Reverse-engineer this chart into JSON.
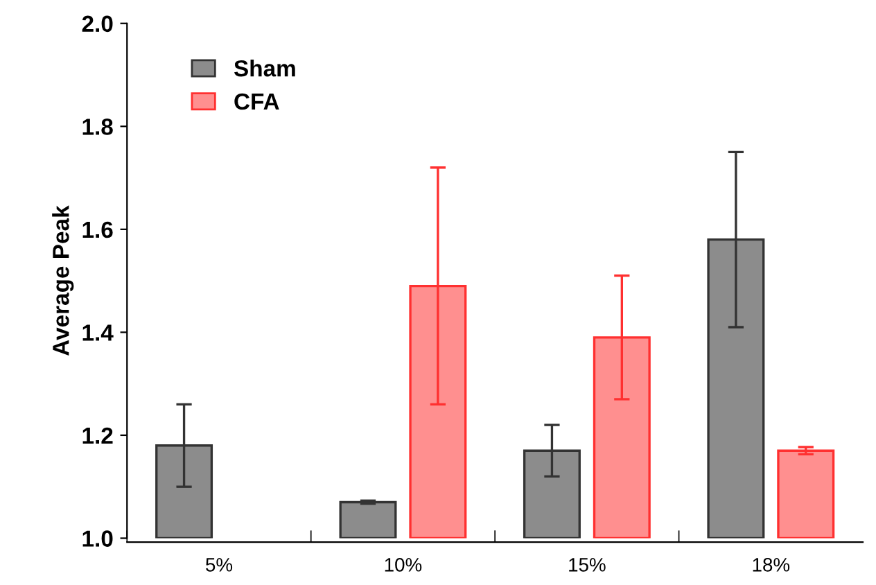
{
  "chart_data": {
    "type": "bar",
    "ylabel": "Average Peak",
    "categories": [
      "5%",
      "10%",
      "15%",
      "18%"
    ],
    "series": [
      {
        "name": "Sham",
        "color": "#8c8c8c",
        "values": [
          1.18,
          1.07,
          1.17,
          1.58
        ],
        "errors": [
          [
            1.1,
            1.26
          ],
          0.003,
          [
            1.12,
            1.22
          ],
          [
            1.41,
            1.75
          ]
        ]
      },
      {
        "name": "CFA",
        "color": "#ff8f8f",
        "values": [
          null,
          1.49,
          1.39,
          1.17
        ],
        "errors": [
          null,
          [
            1.26,
            1.72
          ],
          [
            1.27,
            1.51
          ],
          0.007
        ]
      }
    ],
    "ylim": [
      1.0,
      2.0
    ],
    "yticks": [
      {
        "value": 1,
        "label": "1.0"
      },
      1.2,
      1.4,
      1.6,
      1.8,
      {
        "value": 2,
        "label": "2.0"
      }
    ],
    "grid": false,
    "legend": "top left"
  }
}
